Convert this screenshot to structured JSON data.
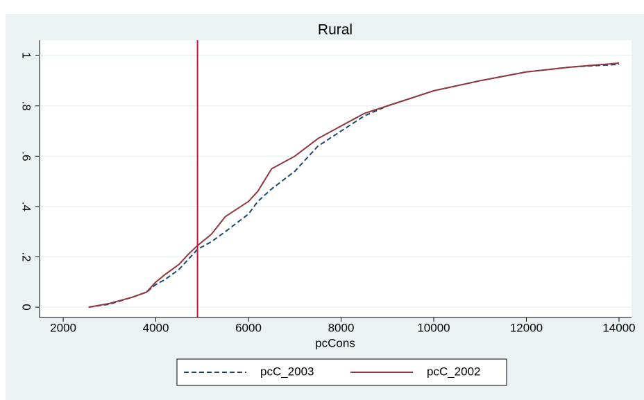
{
  "chart_data": {
    "type": "line",
    "title": "Rural",
    "x_label": "pcCons",
    "x": [
      2550,
      3000,
      3500,
      3800,
      4000,
      4200,
      4500,
      4700,
      4900,
      5200,
      5500,
      6000,
      6200,
      6500,
      7000,
      7500,
      8000,
      8500,
      9000,
      10000,
      11000,
      12000,
      13000,
      14000
    ],
    "series": [
      {
        "name": "pcC_2003",
        "color": "#1a476f",
        "style": "dashed",
        "values": [
          0.0,
          0.012,
          0.04,
          0.06,
          0.09,
          0.11,
          0.15,
          0.19,
          0.23,
          0.26,
          0.3,
          0.37,
          0.42,
          0.47,
          0.54,
          0.64,
          0.7,
          0.76,
          0.8,
          0.86,
          0.9,
          0.935,
          0.955,
          0.965
        ]
      },
      {
        "name": "pcC_2002",
        "color": "#90353b",
        "style": "solid",
        "values": [
          0.0,
          0.015,
          0.04,
          0.06,
          0.1,
          0.13,
          0.17,
          0.21,
          0.245,
          0.29,
          0.36,
          0.42,
          0.46,
          0.55,
          0.6,
          0.67,
          0.72,
          0.77,
          0.8,
          0.86,
          0.9,
          0.935,
          0.955,
          0.97
        ]
      }
    ],
    "xlim": [
      1490,
      14270
    ],
    "xticks": [
      2000,
      4000,
      6000,
      8000,
      10000,
      12000,
      14000
    ],
    "ylim": [
      -0.041,
      1.061
    ],
    "yticks": [
      {
        "value": 0,
        "label": "0"
      },
      {
        "value": 0.2,
        "label": ".2"
      },
      {
        "value": 0.4,
        "label": ".4"
      },
      {
        "value": 0.6,
        "label": ".6"
      },
      {
        "value": 0.8,
        "label": ".8"
      },
      {
        "value": 1,
        "label": "1"
      }
    ],
    "grid": true,
    "xline": 4900,
    "xline_color": "#c0143c",
    "legend": "bottom"
  }
}
